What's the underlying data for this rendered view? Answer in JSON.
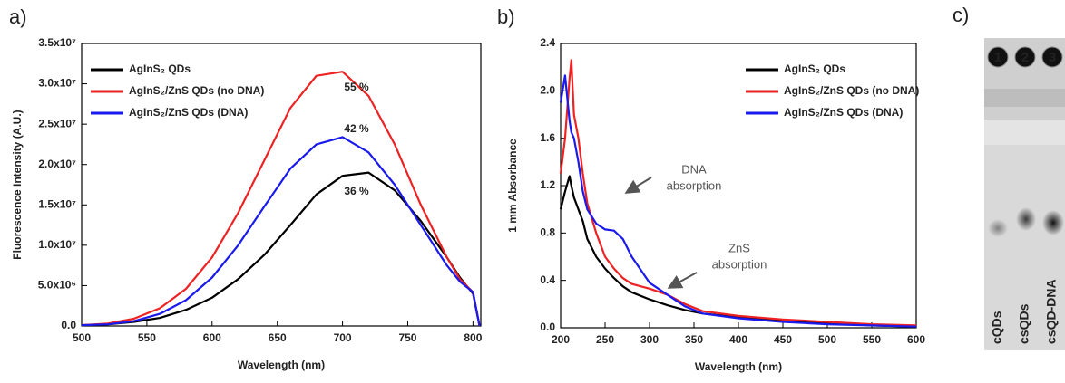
{
  "chart_data": [
    {
      "type": "line",
      "panel_label": "a)",
      "xlabel": "Wavelength (nm)",
      "ylabel": "Fluorescence Intensity (A.U.)",
      "x": [
        500,
        520,
        540,
        560,
        580,
        600,
        620,
        640,
        660,
        680,
        700,
        720,
        740,
        760,
        780,
        790,
        800,
        805
      ],
      "series": [
        {
          "name": "AgInS₂ QDs",
          "color": "#000000",
          "values": [
            100000,
            200000,
            500000,
            1000000,
            2000000,
            3500000,
            5800000,
            8800000,
            12500000,
            16300000,
            18600000,
            19000000,
            16800000,
            13000000,
            8500000,
            6000000,
            4000000,
            0
          ]
        },
        {
          "name": "AgInS₂/ZnS QDs (no DNA)",
          "color": "#ee2222",
          "values": [
            100000,
            300000,
            900000,
            2200000,
            4600000,
            8500000,
            14000000,
            20500000,
            27000000,
            31000000,
            31500000,
            28500000,
            22500000,
            15000000,
            8500000,
            5800000,
            4200000,
            0
          ]
        },
        {
          "name": "AgInS₂/ZnS QDs (DNA)",
          "color": "#1a1aee",
          "values": [
            100000,
            200000,
            600000,
            1500000,
            3200000,
            6000000,
            10000000,
            14800000,
            19500000,
            22500000,
            23400000,
            21500000,
            17500000,
            12500000,
            7500000,
            5500000,
            4200000,
            0
          ]
        }
      ],
      "annotations": [
        "36 %",
        "55 %",
        "42 %"
      ],
      "xlim": [
        500,
        806
      ],
      "xticks": [
        500,
        550,
        600,
        650,
        700,
        750,
        800
      ],
      "ylim": [
        0,
        35000000
      ],
      "yticks": [
        {
          "value": 0,
          "label": "0.0"
        },
        {
          "value": 5000000,
          "label": "5.0x10⁶"
        },
        {
          "value": 10000000,
          "label": "1.0x10⁷"
        },
        {
          "value": 15000000,
          "label": "1.5x10⁷"
        },
        {
          "value": 20000000,
          "label": "2.0x10⁷"
        },
        {
          "value": 25000000,
          "label": "2.5x10⁷"
        },
        {
          "value": 30000000,
          "label": "3.0x10⁷"
        },
        {
          "value": 35000000,
          "label": "3.5x10⁷"
        }
      ],
      "legend": "upper left"
    },
    {
      "type": "line",
      "panel_label": "b)",
      "xlabel": "Wavelength (nm)",
      "ylabel": "1 mm Absorbance",
      "x": [
        200,
        205,
        210,
        212,
        215,
        220,
        225,
        230,
        240,
        250,
        260,
        270,
        280,
        300,
        320,
        340,
        360,
        400,
        450,
        500,
        550,
        600
      ],
      "series": [
        {
          "name": "AgInS₂ QDs",
          "color": "#000000",
          "values": [
            1.0,
            1.15,
            1.28,
            1.2,
            1.1,
            1.0,
            0.9,
            0.75,
            0.6,
            0.5,
            0.42,
            0.35,
            0.3,
            0.24,
            0.19,
            0.15,
            0.12,
            0.09,
            0.06,
            0.04,
            0.02,
            0.01
          ]
        },
        {
          "name": "AgInS₂/ZnS QDs (no DNA)",
          "color": "#ee2222",
          "values": [
            1.3,
            1.6,
            2.1,
            2.26,
            1.8,
            1.6,
            1.3,
            1.05,
            0.8,
            0.6,
            0.5,
            0.42,
            0.37,
            0.33,
            0.28,
            0.2,
            0.14,
            0.1,
            0.07,
            0.05,
            0.03,
            0.02
          ]
        },
        {
          "name": "AgInS₂/ZnS QDs (DNA)",
          "color": "#1a1aee",
          "values": [
            1.9,
            2.13,
            1.75,
            1.65,
            1.6,
            1.4,
            1.15,
            1.0,
            0.88,
            0.83,
            0.82,
            0.75,
            0.6,
            0.38,
            0.28,
            0.18,
            0.12,
            0.08,
            0.05,
            0.03,
            0.02,
            0.01
          ]
        }
      ],
      "annotations": [
        "DNA",
        "absorption",
        "ZnS",
        "absorption"
      ],
      "xlim": [
        200,
        600
      ],
      "xticks": [
        200,
        250,
        300,
        350,
        400,
        450,
        500,
        550,
        600
      ],
      "ylim": [
        0,
        2.4
      ],
      "yticks": [
        {
          "value": 0,
          "label": "0.0"
        },
        0.4,
        0.8,
        1.2,
        1.6,
        {
          "value": 2.0,
          "label": "2.0"
        },
        2.4
      ],
      "legend": "upper right"
    }
  ],
  "gel_image": {
    "panel_label": "c)",
    "lanes": [
      {
        "number": "1",
        "label": "cQDs"
      },
      {
        "number": "2",
        "label": "csQDs"
      },
      {
        "number": "3",
        "label": "csQD-DNA"
      }
    ]
  }
}
